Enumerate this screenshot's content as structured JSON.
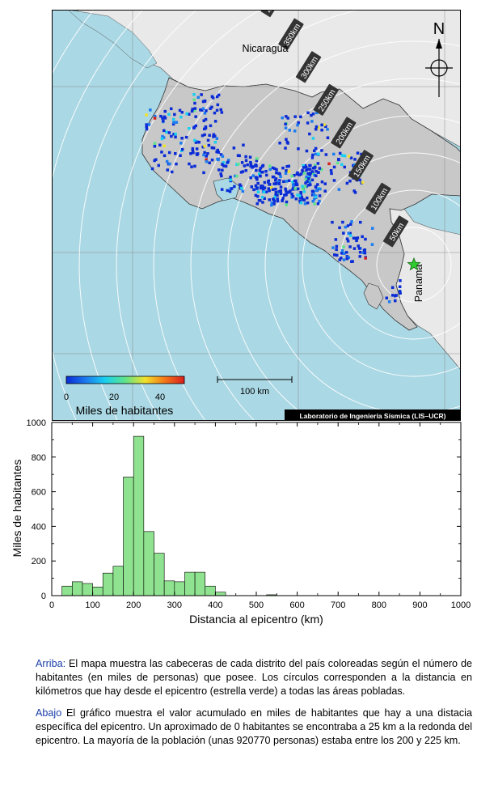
{
  "map": {
    "country_label": "Nicaragua",
    "panama_label": "Panamá",
    "north_label": "N",
    "scalebar_label": "100 km",
    "credit": "Laboratorio de Ingeniería Sísmica (LIS–UCR)",
    "colorbar": {
      "title": "Miles de habitantes",
      "ticks": [
        "0",
        "20",
        "40"
      ],
      "colors": [
        "#0a2bd6",
        "#1a7cf0",
        "#19d0f0",
        "#5fe38a",
        "#f2e12b",
        "#f47a17",
        "#d81e1e"
      ]
    },
    "rings": [
      "50km",
      "100km",
      "150km",
      "200km",
      "250km",
      "300km",
      "350km",
      "400km",
      "450km",
      "500km",
      "550km"
    ],
    "colors": {
      "sea": "#aad8e4",
      "costa_rica": "#c8c8c8",
      "neighbors": "#e9e9e9",
      "epicenter": "#2ecc2e"
    }
  },
  "chart_data": {
    "type": "bar",
    "xlabel": "Distancia al epicentro (km)",
    "ylabel": "Miles de habitantes",
    "xlim": [
      0,
      1000
    ],
    "ylim": [
      0,
      1000
    ],
    "xticks": [
      0,
      100,
      200,
      300,
      400,
      500,
      600,
      700,
      800,
      900,
      1000
    ],
    "yticks": [
      0,
      200,
      400,
      600,
      800,
      1000
    ],
    "bin_width": 25,
    "bins": [
      0,
      25,
      50,
      75,
      100,
      125,
      150,
      175,
      200,
      225,
      250,
      275,
      300,
      325,
      350,
      375,
      400,
      425,
      450,
      475,
      500,
      525
    ],
    "values": [
      0,
      55,
      80,
      70,
      50,
      130,
      170,
      685,
      920,
      370,
      245,
      85,
      80,
      135,
      135,
      55,
      20,
      0,
      0,
      0,
      0,
      5
    ],
    "bar_color": "#8fe28f"
  },
  "caption": {
    "p1_lead": "Arriba:",
    "p1_text": " El mapa muestra las cabeceras de cada distrito del país coloreadas según el número de habitantes (en miles de personas) que posee. Los círculos corresponden a la distancia en kilómetros que hay desde el epicentro (estrella verde) a todas las áreas pobladas.",
    "p2_lead": "Abajo",
    "p2_text": " El gráfico muestra el valor acumulado en miles de habitantes que hay a una distacia específica del epicentro. Un aproximado de 0 habitantes se encontraba a 25 km a la redonda del epicentro. La mayoría de la población (unas 920770 personas) estaba entre los 200 y 225 km."
  }
}
